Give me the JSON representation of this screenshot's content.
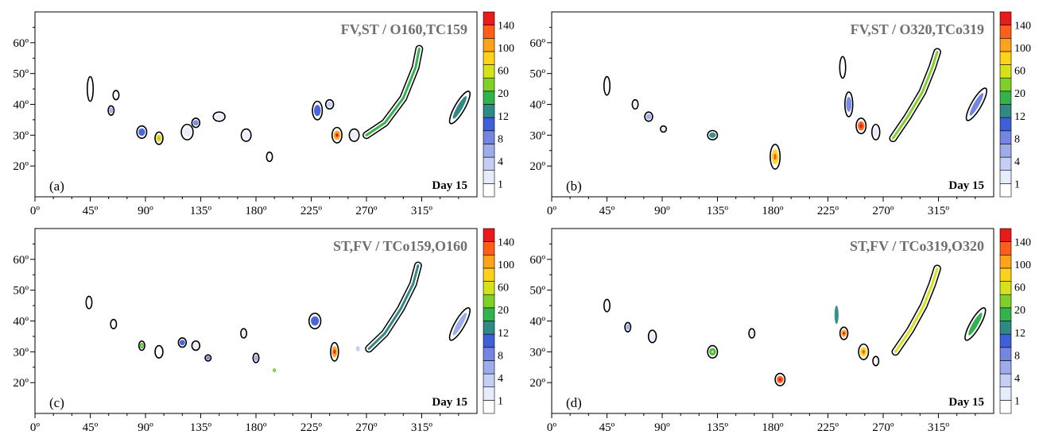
{
  "chart_data": [
    {
      "type": "heatmap",
      "letter": "(a)",
      "title": "FV,ST / O160,TC159",
      "label": "Day 15",
      "xticks": [
        "0º",
        "45º",
        "90º",
        "135º",
        "180º",
        "225º",
        "270º",
        "315º"
      ],
      "yticks": [
        "20º",
        "30º",
        "40º",
        "50º",
        "60º"
      ],
      "xlim": [
        0,
        360
      ],
      "ylim": [
        10,
        70
      ],
      "colorbar_levels": [
        "1",
        "4",
        "8",
        "12",
        "20",
        "60",
        "100",
        "140"
      ],
      "colors": [
        "#ffffff",
        "#e7ecfb",
        "#c5cff4",
        "#9facec",
        "#7585e2",
        "#3f5fd8",
        "#2f8a86",
        "#33b34d",
        "#7fd12a",
        "#d5e21a",
        "#ffd21a",
        "#ffa31a",
        "#ff5e1a",
        "#e81a1a"
      ],
      "features": [
        {
          "lon": 45,
          "lat": 45,
          "w": 3,
          "h": 8,
          "outline": true,
          "v": 0
        },
        {
          "lon": 62,
          "lat": 38,
          "w": 3,
          "h": 3,
          "outline": true,
          "v": 3
        },
        {
          "lon": 66,
          "lat": 43,
          "w": 3,
          "h": 3,
          "outline": true,
          "v": 0
        },
        {
          "lon": 87,
          "lat": 31,
          "w": 5,
          "h": 4,
          "outline": true,
          "v": 5
        },
        {
          "lon": 101,
          "lat": 29,
          "w": 4,
          "h": 4,
          "outline": true,
          "v": 9
        },
        {
          "lon": 124,
          "lat": 31,
          "w": 6,
          "h": 5,
          "outline": true,
          "v": 1
        },
        {
          "lon": 131,
          "lat": 34,
          "w": 4,
          "h": 3,
          "outline": true,
          "v": 4
        },
        {
          "lon": 150,
          "lat": 36,
          "w": 6,
          "h": 3,
          "outline": true,
          "v": 1
        },
        {
          "lon": 172,
          "lat": 30,
          "w": 5,
          "h": 4,
          "outline": true,
          "v": 1
        },
        {
          "lon": 191,
          "lat": 23,
          "w": 3,
          "h": 3,
          "outline": true,
          "v": 0
        },
        {
          "lon": 230,
          "lat": 38,
          "w": 5,
          "h": 6,
          "outline": true,
          "v": 5
        },
        {
          "lon": 246,
          "lat": 30,
          "w": 5,
          "h": 5,
          "outline": true,
          "v": 11
        },
        {
          "lon": 240,
          "lat": 40,
          "w": 4,
          "h": 3,
          "outline": true,
          "v": 2
        },
        {
          "lon": 260,
          "lat": 30,
          "w": 5,
          "h": 4,
          "outline": true,
          "v": 1
        }
      ],
      "bands": [
        {
          "lon": [
            270,
            285,
            300,
            310,
            313
          ],
          "lat": [
            30,
            34,
            42,
            52,
            58
          ],
          "v": 7,
          "width": 2.5
        }
      ],
      "ellipses": [
        {
          "lon": 346,
          "lat": 39,
          "rx": 4,
          "ry": 6,
          "rot": 30,
          "v": 6
        }
      ]
    },
    {
      "type": "heatmap",
      "letter": "(b)",
      "title": "FV,ST / O320,TCo319",
      "label": "Day 15",
      "xticks": [
        "0º",
        "45º",
        "90º",
        "135º",
        "180º",
        "225º",
        "270º",
        "315º"
      ],
      "yticks": [
        "20º",
        "30º",
        "40º",
        "50º",
        "60º"
      ],
      "xlim": [
        0,
        360
      ],
      "ylim": [
        10,
        70
      ],
      "colorbar_levels": [
        "1",
        "4",
        "8",
        "12",
        "20",
        "60",
        "100",
        "140"
      ],
      "colors": [
        "#ffffff",
        "#e7ecfb",
        "#c5cff4",
        "#9facec",
        "#7585e2",
        "#3f5fd8",
        "#2f8a86",
        "#33b34d",
        "#7fd12a",
        "#d5e21a",
        "#ffd21a",
        "#ffa31a",
        "#ff5e1a",
        "#e81a1a"
      ],
      "features": [
        {
          "lon": 45,
          "lat": 46,
          "w": 3,
          "h": 6,
          "outline": true,
          "v": 0
        },
        {
          "lon": 68,
          "lat": 40,
          "w": 3,
          "h": 3,
          "outline": true,
          "v": 1
        },
        {
          "lon": 79,
          "lat": 36,
          "w": 4,
          "h": 3,
          "outline": true,
          "v": 3
        },
        {
          "lon": 91,
          "lat": 32,
          "w": 3,
          "h": 2,
          "outline": true,
          "v": 1
        },
        {
          "lon": 131,
          "lat": 30,
          "w": 5,
          "h": 3,
          "outline": true,
          "v": 6
        },
        {
          "lon": 182,
          "lat": 23,
          "w": 5,
          "h": 8,
          "outline": true,
          "v": 10
        },
        {
          "lon": 242,
          "lat": 40,
          "w": 4,
          "h": 8,
          "outline": true,
          "v": 4
        },
        {
          "lon": 252,
          "lat": 33,
          "w": 5,
          "h": 5,
          "outline": true,
          "v": 12
        },
        {
          "lon": 264,
          "lat": 31,
          "w": 4,
          "h": 5,
          "outline": true,
          "v": 1
        },
        {
          "lon": 237,
          "lat": 52,
          "w": 3,
          "h": 7,
          "outline": true,
          "v": 0
        }
      ],
      "bands": [
        {
          "lon": [
            278,
            290,
            302,
            310,
            314
          ],
          "lat": [
            29,
            36,
            44,
            52,
            57
          ],
          "v": 8,
          "width": 2.5
        }
      ],
      "ellipses": [
        {
          "lon": 346,
          "lat": 40,
          "rx": 4,
          "ry": 6,
          "rot": 30,
          "v": 4
        }
      ]
    },
    {
      "type": "heatmap",
      "letter": "(c)",
      "title": "ST,FV / TCo159,O160",
      "label": "Day 15",
      "xticks": [
        "0º",
        "45º",
        "90º",
        "135º",
        "180º",
        "225º",
        "270º",
        "315º"
      ],
      "yticks": [
        "20º",
        "30º",
        "40º",
        "50º",
        "60º"
      ],
      "xlim": [
        0,
        360
      ],
      "ylim": [
        10,
        70
      ],
      "colorbar_levels": [
        "1",
        "4",
        "8",
        "12",
        "20",
        "60",
        "100",
        "140"
      ],
      "colors": [
        "#ffffff",
        "#e7ecfb",
        "#c5cff4",
        "#9facec",
        "#7585e2",
        "#3f5fd8",
        "#2f8a86",
        "#33b34d",
        "#7fd12a",
        "#d5e21a",
        "#ffd21a",
        "#ffa31a",
        "#ff5e1a",
        "#e81a1a"
      ],
      "features": [
        {
          "lon": 44,
          "lat": 46,
          "w": 3,
          "h": 4,
          "outline": true,
          "v": 0
        },
        {
          "lon": 64,
          "lat": 39,
          "w": 3,
          "h": 3,
          "outline": true,
          "v": 0
        },
        {
          "lon": 87,
          "lat": 32,
          "w": 3,
          "h": 3,
          "outline": true,
          "v": 7
        },
        {
          "lon": 101,
          "lat": 30,
          "w": 4,
          "h": 4,
          "outline": true,
          "v": 0
        },
        {
          "lon": 120,
          "lat": 33,
          "w": 4,
          "h": 3,
          "outline": true,
          "v": 5
        },
        {
          "lon": 131,
          "lat": 32,
          "w": 4,
          "h": 3,
          "outline": true,
          "v": 1
        },
        {
          "lon": 141,
          "lat": 28,
          "w": 3,
          "h": 2,
          "outline": true,
          "v": 4
        },
        {
          "lon": 170,
          "lat": 36,
          "w": 3,
          "h": 3,
          "outline": true,
          "v": 1
        },
        {
          "lon": 180,
          "lat": 28,
          "w": 3,
          "h": 3,
          "outline": true,
          "v": 3
        },
        {
          "lon": 195,
          "lat": 24,
          "w": 2,
          "h": 2,
          "outline": false,
          "v": 7
        },
        {
          "lon": 228,
          "lat": 40,
          "w": 6,
          "h": 5,
          "outline": true,
          "v": 5
        },
        {
          "lon": 244,
          "lat": 30,
          "w": 4,
          "h": 6,
          "outline": true,
          "v": 11
        },
        {
          "lon": 263,
          "lat": 31,
          "w": 3,
          "h": 3,
          "outline": false,
          "v": 2
        }
      ],
      "bands": [
        {
          "lon": [
            272,
            285,
            298,
            308,
            312
          ],
          "lat": [
            31,
            36,
            44,
            52,
            58
          ],
          "v": 6,
          "width": 2.5
        }
      ],
      "ellipses": [
        {
          "lon": 346,
          "lat": 39,
          "rx": 4,
          "ry": 6,
          "rot": 30,
          "v": 3
        }
      ]
    },
    {
      "type": "heatmap",
      "letter": "(d)",
      "title": "ST,FV / TCo319,O320",
      "label": "Day 15",
      "xticks": [
        "0º",
        "45º",
        "90º",
        "135º",
        "180º",
        "225º",
        "270º",
        "315º"
      ],
      "yticks": [
        "20º",
        "30º",
        "40º",
        "50º",
        "60º"
      ],
      "xlim": [
        0,
        360
      ],
      "ylim": [
        10,
        70
      ],
      "colorbar_levels": [
        "1",
        "4",
        "8",
        "12",
        "20",
        "60",
        "100",
        "140"
      ],
      "colors": [
        "#ffffff",
        "#e7ecfb",
        "#c5cff4",
        "#9facec",
        "#7585e2",
        "#3f5fd8",
        "#2f8a86",
        "#33b34d",
        "#7fd12a",
        "#d5e21a",
        "#ffd21a",
        "#ffa31a",
        "#ff5e1a",
        "#e81a1a"
      ],
      "features": [
        {
          "lon": 45,
          "lat": 45,
          "w": 3,
          "h": 4,
          "outline": true,
          "v": 0
        },
        {
          "lon": 62,
          "lat": 38,
          "w": 3,
          "h": 3,
          "outline": true,
          "v": 3
        },
        {
          "lon": 82,
          "lat": 35,
          "w": 4,
          "h": 4,
          "outline": true,
          "v": 1
        },
        {
          "lon": 131,
          "lat": 30,
          "w": 5,
          "h": 4,
          "outline": true,
          "v": 7
        },
        {
          "lon": 163,
          "lat": 36,
          "w": 3,
          "h": 3,
          "outline": true,
          "v": 1
        },
        {
          "lon": 186,
          "lat": 21,
          "w": 5,
          "h": 4,
          "outline": true,
          "v": 12
        },
        {
          "lon": 232,
          "lat": 42,
          "w": 3,
          "h": 10,
          "outline": false,
          "v": 6
        },
        {
          "lon": 238,
          "lat": 36,
          "w": 4,
          "h": 4,
          "outline": true,
          "v": 11
        },
        {
          "lon": 254,
          "lat": 30,
          "w": 5,
          "h": 5,
          "outline": true,
          "v": 10
        },
        {
          "lon": 264,
          "lat": 27,
          "w": 3,
          "h": 3,
          "outline": true,
          "v": 0
        }
      ],
      "bands": [
        {
          "lon": [
            280,
            292,
            303,
            310,
            314
          ],
          "lat": [
            30,
            37,
            45,
            52,
            57
          ],
          "v": 9,
          "width": 2.5
        }
      ],
      "ellipses": [
        {
          "lon": 345,
          "lat": 39,
          "rx": 4,
          "ry": 6,
          "rot": 30,
          "v": 7
        }
      ]
    }
  ]
}
